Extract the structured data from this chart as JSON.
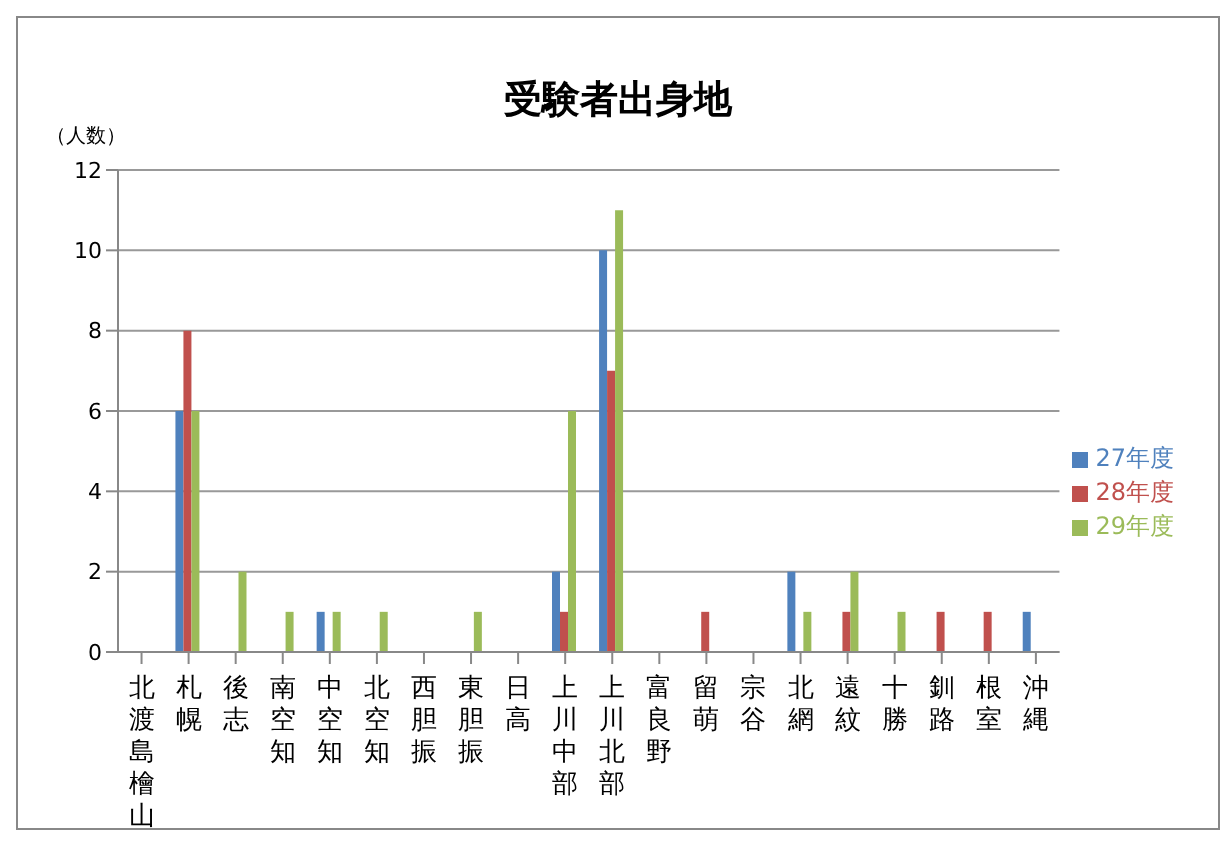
{
  "chart_data": {
    "type": "bar",
    "title": "受験者出身地",
    "ylabel": "（人数）",
    "categories": [
      "北渡島檜山",
      "札幌",
      "後志",
      "南空知",
      "中空知",
      "北空知",
      "西胆振",
      "東胆振",
      "日高",
      "上川中部",
      "上川北部",
      "富良野",
      "留萌",
      "宗谷",
      "北網",
      "遠紋",
      "十勝",
      "釧路",
      "根室",
      "沖縄"
    ],
    "series": [
      {
        "name": "27年度",
        "color": "#4f81bd",
        "values": [
          0,
          6,
          0,
          0,
          1,
          0,
          0,
          0,
          0,
          2,
          10,
          0,
          0,
          0,
          2,
          0,
          0,
          0,
          0,
          1
        ]
      },
      {
        "name": "28年度",
        "color": "#c0504d",
        "values": [
          0,
          8,
          0,
          0,
          0,
          0,
          0,
          0,
          0,
          1,
          7,
          0,
          1,
          0,
          0,
          1,
          0,
          1,
          1,
          0
        ]
      },
      {
        "name": "29年度",
        "color": "#9bbb59",
        "values": [
          0,
          6,
          2,
          1,
          1,
          1,
          0,
          1,
          0,
          6,
          11,
          0,
          0,
          0,
          1,
          2,
          1,
          0,
          0,
          0
        ]
      }
    ],
    "ylim": [
      0,
      12
    ],
    "yticks": [
      0,
      2,
      4,
      6,
      8,
      10,
      12
    ],
    "grid": "y",
    "legend": "right"
  }
}
